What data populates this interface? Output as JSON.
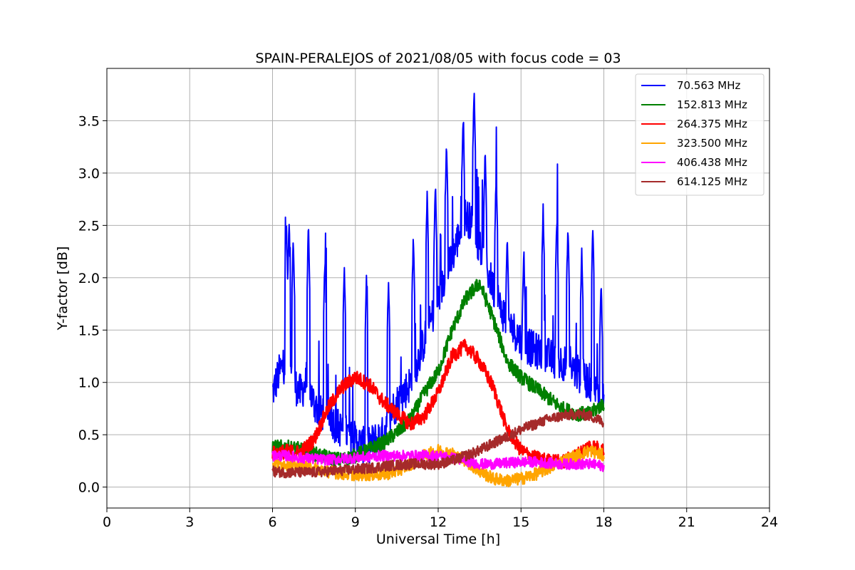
{
  "chart_data": {
    "type": "line",
    "title": "SPAIN-PERALEJOS of 2021/08/05 with focus code = 03",
    "xlabel": "Universal Time [h]",
    "ylabel": "Y-factor [dB]",
    "xlim": [
      0,
      24
    ],
    "ylim": [
      -0.2,
      4.0
    ],
    "xticks": [
      0,
      3,
      6,
      9,
      12,
      15,
      18,
      21,
      24
    ],
    "xtick_labels": [
      "0",
      "3",
      "6",
      "9",
      "12",
      "15",
      "18",
      "21",
      "24"
    ],
    "yticks": [
      0.0,
      0.5,
      1.0,
      1.5,
      2.0,
      2.5,
      3.0,
      3.5
    ],
    "ytick_labels": [
      "0.0",
      "0.5",
      "1.0",
      "1.5",
      "2.0",
      "2.5",
      "3.0",
      "3.5"
    ],
    "grid": true,
    "legend_position": "top-right",
    "series": [
      {
        "name": "70.563 MHz",
        "color": "#0000ff",
        "x": [
          6.0,
          6.25,
          6.5,
          6.75,
          7.0,
          7.25,
          7.5,
          7.75,
          8.0,
          8.25,
          8.5,
          8.75,
          9.0,
          9.25,
          9.5,
          9.75,
          10.0,
          10.25,
          10.5,
          10.75,
          11.0,
          11.25,
          11.5,
          11.75,
          12.0,
          12.25,
          12.5,
          12.75,
          13.0,
          13.25,
          13.5,
          13.75,
          14.0,
          14.25,
          14.5,
          14.75,
          15.0,
          15.25,
          15.5,
          15.75,
          16.0,
          16.25,
          16.5,
          16.75,
          17.0,
          17.25,
          17.5,
          17.75,
          18.0
        ],
        "y": [
          0.9,
          1.1,
          1.2,
          1.0,
          0.9,
          1.0,
          0.8,
          0.7,
          0.75,
          0.6,
          0.55,
          0.5,
          0.45,
          0.4,
          0.4,
          0.45,
          0.5,
          0.7,
          0.8,
          0.9,
          1.0,
          1.2,
          1.4,
          1.6,
          1.8,
          2.0,
          2.2,
          2.4,
          2.6,
          2.5,
          2.3,
          2.1,
          1.9,
          1.7,
          1.6,
          1.5,
          1.4,
          1.35,
          1.3,
          1.3,
          1.25,
          1.2,
          1.2,
          1.15,
          1.1,
          1.05,
          1.0,
          0.9,
          0.8
        ],
        "spikes": [
          [
            6.5,
            2.57
          ],
          [
            6.6,
            2.55
          ],
          [
            6.75,
            2.4
          ],
          [
            7.3,
            2.5
          ],
          [
            7.9,
            2.2
          ],
          [
            8.6,
            2.1
          ],
          [
            9.4,
            2.0
          ],
          [
            10.2,
            2.0
          ],
          [
            11.1,
            2.4
          ],
          [
            11.6,
            2.8
          ],
          [
            11.9,
            2.9
          ],
          [
            12.3,
            3.3
          ],
          [
            12.9,
            3.54
          ],
          [
            13.3,
            3.8
          ],
          [
            13.7,
            3.2
          ],
          [
            14.1,
            3.0
          ],
          [
            14.5,
            2.4
          ],
          [
            15.1,
            2.3
          ],
          [
            15.8,
            2.66
          ],
          [
            16.3,
            2.6
          ],
          [
            16.7,
            2.5
          ],
          [
            17.2,
            2.3
          ],
          [
            17.6,
            2.5
          ],
          [
            17.9,
            2.0
          ]
        ]
      },
      {
        "name": "152.813 MHz",
        "color": "#008000",
        "x": [
          6.0,
          6.5,
          7.0,
          7.5,
          8.0,
          8.5,
          9.0,
          9.5,
          10.0,
          10.5,
          11.0,
          11.5,
          12.0,
          12.5,
          13.0,
          13.5,
          14.0,
          14.5,
          15.0,
          15.5,
          16.0,
          16.5,
          17.0,
          17.5,
          18.0
        ],
        "y": [
          0.38,
          0.38,
          0.36,
          0.32,
          0.28,
          0.26,
          0.3,
          0.36,
          0.42,
          0.52,
          0.65,
          0.9,
          1.1,
          1.5,
          1.8,
          1.95,
          1.6,
          1.2,
          1.05,
          0.95,
          0.85,
          0.75,
          0.7,
          0.7,
          0.8
        ]
      },
      {
        "name": "264.375 MHz",
        "color": "#ff0000",
        "x": [
          6.0,
          6.5,
          7.0,
          7.5,
          8.0,
          8.5,
          9.0,
          9.5,
          10.0,
          10.5,
          11.0,
          11.5,
          12.0,
          12.5,
          13.0,
          13.5,
          14.0,
          14.5,
          15.0,
          15.5,
          16.0,
          16.5,
          17.0,
          17.5,
          18.0
        ],
        "y": [
          0.32,
          0.34,
          0.33,
          0.45,
          0.75,
          0.95,
          1.05,
          0.98,
          0.82,
          0.7,
          0.6,
          0.68,
          0.9,
          1.25,
          1.35,
          1.2,
          0.95,
          0.55,
          0.35,
          0.28,
          0.25,
          0.24,
          0.3,
          0.4,
          0.35
        ]
      },
      {
        "name": "323.500 MHz",
        "color": "#ffa500",
        "x": [
          6.0,
          6.5,
          7.0,
          7.5,
          8.0,
          8.5,
          9.0,
          9.5,
          10.0,
          10.5,
          11.0,
          11.5,
          12.0,
          12.5,
          13.0,
          13.5,
          14.0,
          14.5,
          15.0,
          15.5,
          16.0,
          16.5,
          17.0,
          17.5,
          18.0
        ],
        "y": [
          0.22,
          0.22,
          0.2,
          0.18,
          0.15,
          0.13,
          0.12,
          0.12,
          0.12,
          0.15,
          0.22,
          0.3,
          0.35,
          0.32,
          0.25,
          0.15,
          0.08,
          0.06,
          0.08,
          0.12,
          0.18,
          0.25,
          0.3,
          0.35,
          0.3
        ]
      },
      {
        "name": "406.438 MHz",
        "color": "#ff00ff",
        "x": [
          6.0,
          6.5,
          7.0,
          7.5,
          8.0,
          8.5,
          9.0,
          9.5,
          10.0,
          10.5,
          11.0,
          11.5,
          12.0,
          12.5,
          13.0,
          13.5,
          14.0,
          14.5,
          15.0,
          15.5,
          16.0,
          16.5,
          17.0,
          17.5,
          18.0
        ],
        "y": [
          0.3,
          0.3,
          0.28,
          0.27,
          0.26,
          0.27,
          0.28,
          0.29,
          0.3,
          0.3,
          0.3,
          0.3,
          0.3,
          0.28,
          0.25,
          0.22,
          0.22,
          0.23,
          0.24,
          0.24,
          0.23,
          0.22,
          0.22,
          0.22,
          0.2
        ]
      },
      {
        "name": "614.125 MHz",
        "color": "#a52a2a",
        "x": [
          6.0,
          6.5,
          7.0,
          7.5,
          8.0,
          8.5,
          9.0,
          9.5,
          10.0,
          10.5,
          11.0,
          11.5,
          12.0,
          12.5,
          13.0,
          13.5,
          14.0,
          14.5,
          15.0,
          15.5,
          16.0,
          16.5,
          17.0,
          17.5,
          18.0
        ],
        "y": [
          0.15,
          0.14,
          0.14,
          0.14,
          0.15,
          0.16,
          0.17,
          0.18,
          0.2,
          0.21,
          0.22,
          0.22,
          0.22,
          0.25,
          0.3,
          0.35,
          0.42,
          0.48,
          0.55,
          0.6,
          0.65,
          0.68,
          0.7,
          0.68,
          0.62
        ]
      }
    ]
  }
}
